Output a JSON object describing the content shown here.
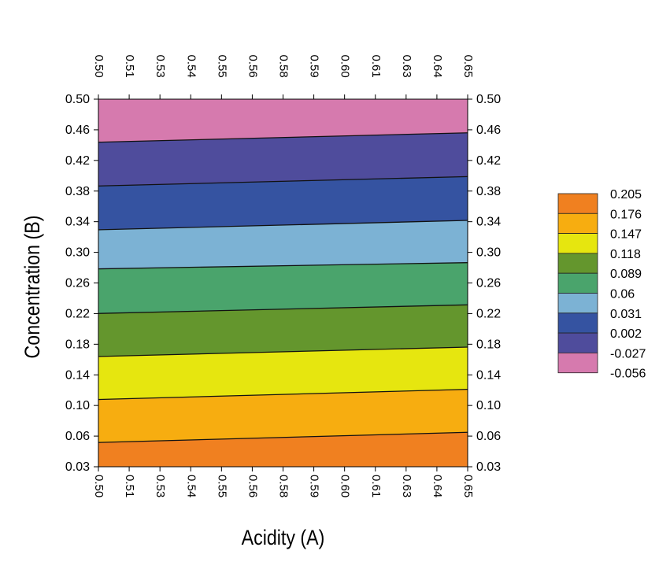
{
  "chart_data": {
    "type": "contour",
    "title": "",
    "xlabel": "Acidity (A)",
    "ylabel": "Concentration (B)",
    "xlim": [
      0.5,
      0.65
    ],
    "ylim": [
      0.03,
      0.5
    ],
    "x_ticks": [
      "0.50",
      "0.51",
      "0.53",
      "0.54",
      "0.55",
      "0.56",
      "0.58",
      "0.59",
      "0.60",
      "0.61",
      "0.63",
      "0.64",
      "0.65"
    ],
    "y_ticks": [
      "0.50",
      "0.46",
      "0.42",
      "0.38",
      "0.34",
      "0.30",
      "0.26",
      "0.22",
      "0.18",
      "0.14",
      "0.10",
      "0.06",
      "0.03"
    ],
    "y_tick_values": [
      0.5,
      0.46,
      0.42,
      0.38,
      0.34,
      0.3,
      0.26,
      0.22,
      0.18,
      0.14,
      0.1,
      0.06,
      0.03
    ],
    "levels": [
      0.205,
      0.176,
      0.147,
      0.118,
      0.089,
      0.06,
      0.031,
      0.002,
      -0.027,
      -0.056
    ],
    "level_labels": [
      "0.205",
      "0.176",
      "0.147",
      "0.118",
      "0.089",
      "0.06",
      "0.031",
      "0.002",
      "-0.027",
      "-0.056"
    ],
    "level_colors": [
      "#f08020",
      "#f7ad10",
      "#e6e60f",
      "#64962d",
      "#4aa46c",
      "#7cb2d4",
      "#3553a1",
      "#4f4c9c",
      "#d67aae"
    ],
    "boundaries": [
      {
        "value": 0.176,
        "y_at_xmin": 0.061,
        "y_at_xmax": 0.074
      },
      {
        "value": 0.147,
        "y_at_xmin": 0.116,
        "y_at_xmax": 0.129
      },
      {
        "value": 0.118,
        "y_at_xmin": 0.171,
        "y_at_xmax": 0.183
      },
      {
        "value": 0.089,
        "y_at_xmin": 0.226,
        "y_at_xmax": 0.237
      },
      {
        "value": 0.06,
        "y_at_xmin": 0.283,
        "y_at_xmax": 0.291
      },
      {
        "value": 0.031,
        "y_at_xmin": 0.333,
        "y_at_xmax": 0.345
      },
      {
        "value": 0.002,
        "y_at_xmin": 0.389,
        "y_at_xmax": 0.401
      },
      {
        "value": -0.027,
        "y_at_xmin": 0.445,
        "y_at_xmax": 0.457
      }
    ]
  }
}
